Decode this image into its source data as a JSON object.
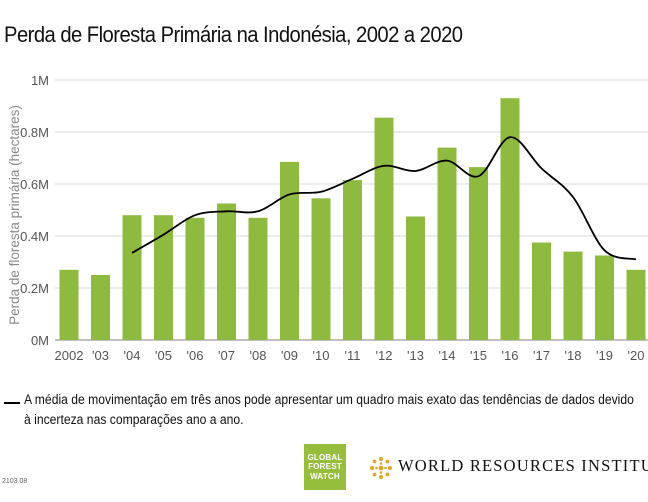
{
  "title": "Perda de Floresta Primária na Indonésia, 2002 a 2020",
  "legend_text": "A média de movimentação em três anos pode apresentar um quadro mais exato das tendências de dados devido à incerteza nas comparações ano a ano.",
  "gfw_lines": [
    "GLOBAL",
    "FOREST",
    "WATCH"
  ],
  "wri_name": "WORLD RESOURCES INSTITUTE",
  "code": "2103.08",
  "colors": {
    "bar": "#8ebb3f",
    "line": "#000000",
    "grid": "#d9d9d9",
    "gfw": "#97bd3d",
    "wri": "#e0a526"
  },
  "chart_data": {
    "type": "bar",
    "title": "Perda de Floresta Primária na Indonésia, 2002 a 2020",
    "ylabel": "Perda de floresta primária (hectares)",
    "xlabel": "",
    "categories": [
      "2002",
      "'03",
      "'04",
      "'05",
      "'06",
      "'07",
      "'08",
      "'09",
      "'10",
      "'11",
      "'12",
      "'13",
      "'14",
      "'15",
      "'16",
      "'17",
      "'18",
      "'19",
      "'20"
    ],
    "values": [
      0.27,
      0.25,
      0.48,
      0.48,
      0.47,
      0.525,
      0.47,
      0.685,
      0.545,
      0.615,
      0.855,
      0.475,
      0.74,
      0.665,
      0.93,
      0.375,
      0.34,
      0.325,
      0.27
    ],
    "moving_average": [
      null,
      null,
      0.335,
      0.405,
      0.48,
      0.495,
      0.495,
      0.56,
      0.57,
      0.62,
      0.67,
      0.65,
      0.69,
      0.63,
      0.78,
      0.66,
      0.55,
      0.345,
      0.31
    ],
    "ylim": [
      0,
      1
    ],
    "yticks": [
      0,
      0.2,
      0.4,
      0.6,
      0.8,
      1.0
    ],
    "ytick_labels": [
      "0M",
      "0.2M",
      "0.4M",
      "0.6M",
      "0.8M",
      "1M"
    ],
    "grid": true
  }
}
